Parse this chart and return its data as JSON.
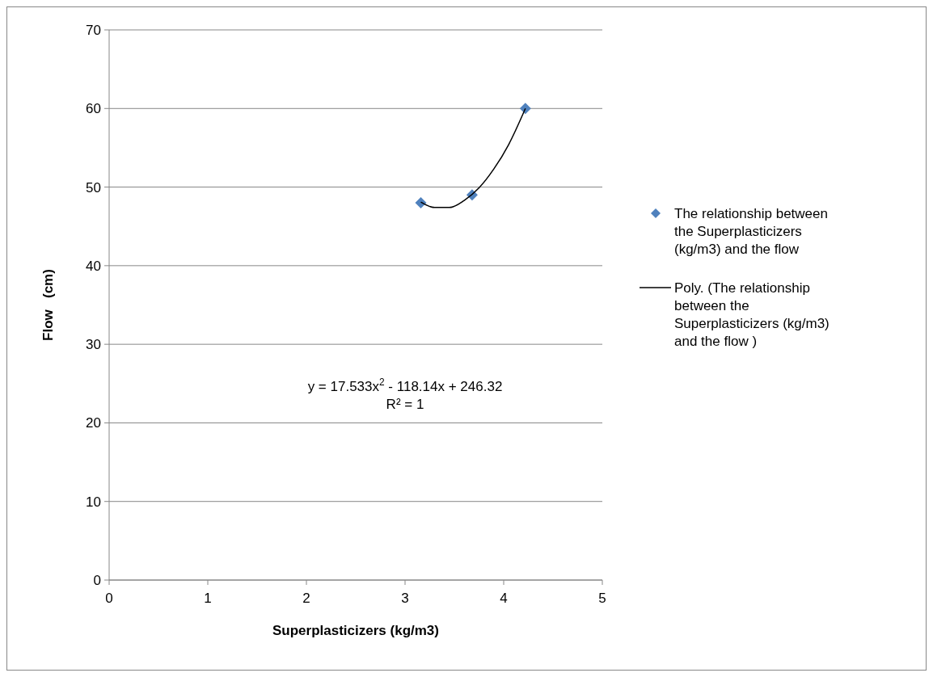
{
  "chart_data": {
    "type": "scatter",
    "xlabel": "Superplasticizers (kg/m3)",
    "ylabel": "Flow   (cm)",
    "xlim": [
      0,
      5
    ],
    "xticks": [
      0,
      1,
      2,
      3,
      4,
      5
    ],
    "ylim": [
      0,
      70
    ],
    "yticks": [
      0,
      10,
      20,
      30,
      40,
      50,
      60,
      70
    ],
    "grid": "y",
    "legend": "right",
    "marker": "diamond",
    "series": [
      {
        "name": "The relationship between the Superplasticizers (kg/m3) and the flow",
        "color": "#4f81bd",
        "x": [
          3.16,
          3.68,
          4.22
        ],
        "values": [
          48,
          49,
          60
        ]
      },
      {
        "type": "line",
        "name": "Poly. (The relationship between the Superplasticizers (kg/m3) and the flow )",
        "color": "#000000",
        "marker": "none",
        "line_style": "solid",
        "x": [
          3.16,
          3.3,
          3.45,
          3.6,
          3.75,
          3.9,
          4.05,
          4.22
        ],
        "values": [
          48.1,
          47.4,
          47.4,
          48.3,
          49.9,
          52.3,
          55.4,
          60.0
        ]
      }
    ],
    "annotations": [
      "y = 17.533x$^{2}$ - 118.14x + 246.32",
      "R² = 1"
    ]
  }
}
